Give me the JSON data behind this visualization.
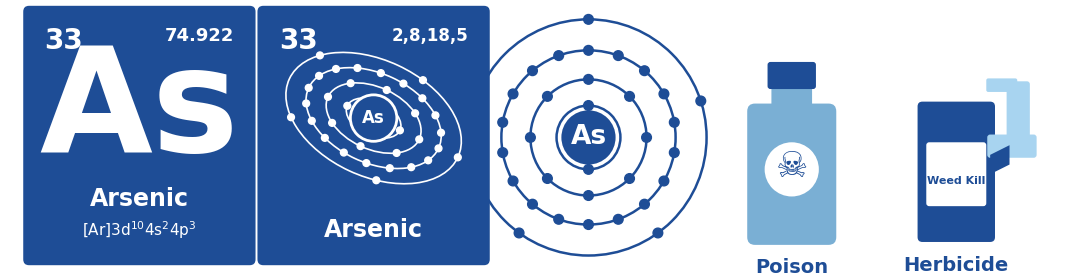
{
  "bg_color": "#ffffff",
  "card_color": "#1e4d96",
  "text_white": "#ffffff",
  "text_blue": "#1e4d96",
  "element_symbol": "As",
  "element_name": "Arsenic",
  "atomic_number": "33",
  "atomic_weight": "74.922",
  "electron_shells": [
    2,
    8,
    18,
    5
  ],
  "shell_config_label": "2,8,18,5",
  "poison_label": "Poison",
  "herbicide_label": "Herbicide",
  "weed_kill_label": "Weed Kill",
  "bottle_light": "#7aafd4",
  "spray_light": "#a8d4f0",
  "orbit_blue": "#1e4d96"
}
